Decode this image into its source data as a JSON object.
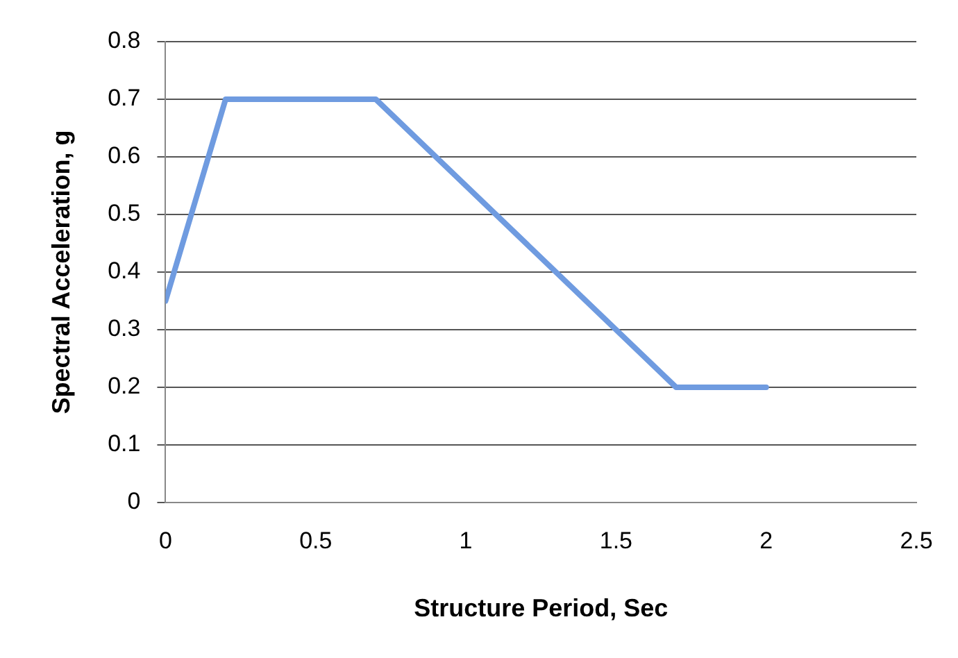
{
  "chart_data": {
    "type": "line",
    "xlabel": "Structure Period, Sec",
    "ylabel": "Spectral Acceleration, g",
    "series": [
      {
        "color": "#6f9be0",
        "x": [
          0,
          0.2,
          0.7,
          1.7,
          2
        ],
        "values": [
          0.35,
          0.7,
          0.7,
          0.2,
          0.2
        ]
      }
    ],
    "xlim": [
      0,
      2.5
    ],
    "xticks": [
      0,
      0.5,
      1,
      1.5,
      2,
      2.5
    ],
    "ylim": [
      0,
      0.8
    ],
    "yticks": [
      0,
      0.1,
      0.2,
      0.3,
      0.4,
      0.5,
      0.6,
      0.7,
      0.8
    ],
    "grid": "y",
    "legend": false,
    "marker": "none",
    "line_style": "solid"
  }
}
